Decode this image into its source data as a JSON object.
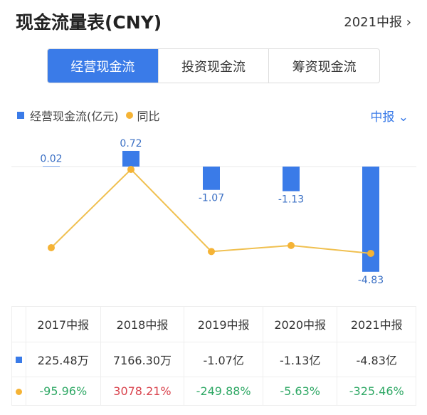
{
  "header": {
    "title": "现金流量表(CNY)",
    "period": "2021中报",
    "chevron": "›"
  },
  "tabs": [
    {
      "label": "经营现金流",
      "active": true
    },
    {
      "label": "投资现金流",
      "active": false
    },
    {
      "label": "筹资现金流",
      "active": false
    }
  ],
  "legend": {
    "bar": "经营现金流(亿元)",
    "line": "同比"
  },
  "freq": {
    "label": "中报",
    "chevron": "⌄"
  },
  "colors": {
    "bar": "#3a7be8",
    "line": "#f5b335",
    "up": "#d9434d",
    "down": "#2fa865"
  },
  "chart_data": {
    "type": "bar+line",
    "categories": [
      "2017中报",
      "2018中报",
      "2019中报",
      "2020中报",
      "2021中报"
    ],
    "series": [
      {
        "name": "经营现金流(亿元)",
        "type": "bar",
        "values": [
          0.02,
          0.72,
          -1.07,
          -1.13,
          -4.83
        ],
        "labels": [
          "0.02",
          "0.72",
          "-1.07",
          "-1.13",
          "-4.83"
        ]
      },
      {
        "name": "同比",
        "type": "line",
        "values": [
          -95.96,
          3078.21,
          -249.88,
          -5.63,
          -325.46
        ],
        "unit": "%"
      }
    ]
  },
  "table": {
    "headers": [
      "2017中报",
      "2018中报",
      "2019中报",
      "2020中报",
      "2021中报"
    ],
    "bar_row": [
      "225.48万",
      "7166.30万",
      "-1.07亿",
      "-1.13亿",
      "-4.83亿"
    ],
    "line_row": [
      "-95.96%",
      "3078.21%",
      "-249.88%",
      "-5.63%",
      "-325.46%"
    ]
  }
}
